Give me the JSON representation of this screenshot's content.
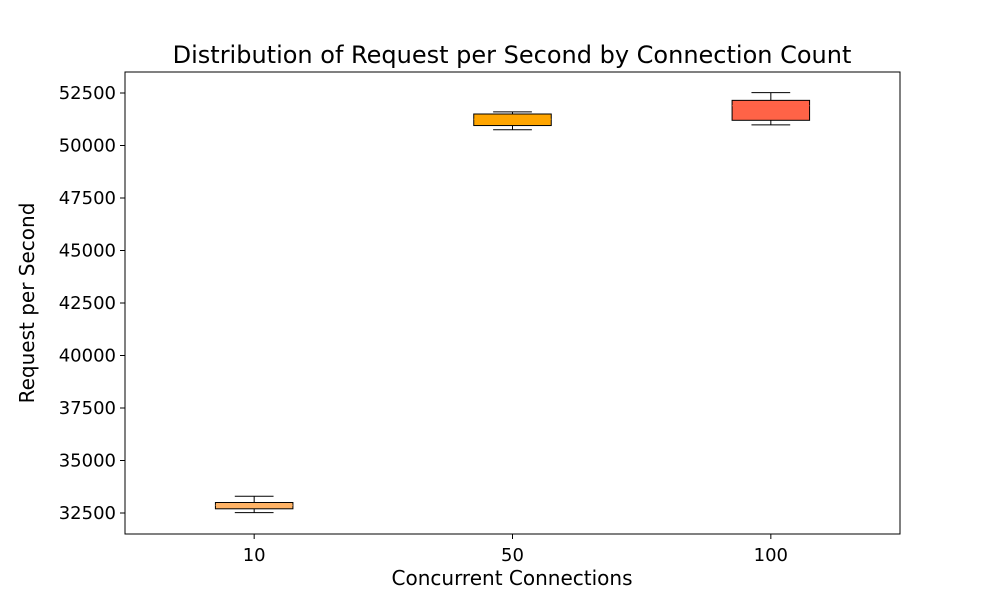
{
  "chart_data": {
    "type": "box",
    "title": "Distribution of Request per Second by Connection Count",
    "xlabel": "Concurrent Connections",
    "ylabel": "Request per Second",
    "ylim": [
      31500,
      53500
    ],
    "yticks": [
      32500,
      35000,
      37500,
      40000,
      42500,
      45000,
      47500,
      50000,
      52500
    ],
    "grid": false,
    "categories": [
      "10",
      "50",
      "100"
    ],
    "boxes": [
      {
        "category": "10",
        "whisker_low": 32520,
        "q1": 32700,
        "median": 32870,
        "q3": 33000,
        "whisker_high": 33300,
        "color": "#ffb366"
      },
      {
        "category": "50",
        "whisker_low": 50750,
        "q1": 50950,
        "median": 51250,
        "q3": 51500,
        "whisker_high": 51600,
        "color": "#ffa500"
      },
      {
        "category": "100",
        "whisker_low": 50980,
        "q1": 51200,
        "median": 51900,
        "q3": 52150,
        "whisker_high": 52520,
        "color": "#ff6347"
      }
    ]
  }
}
